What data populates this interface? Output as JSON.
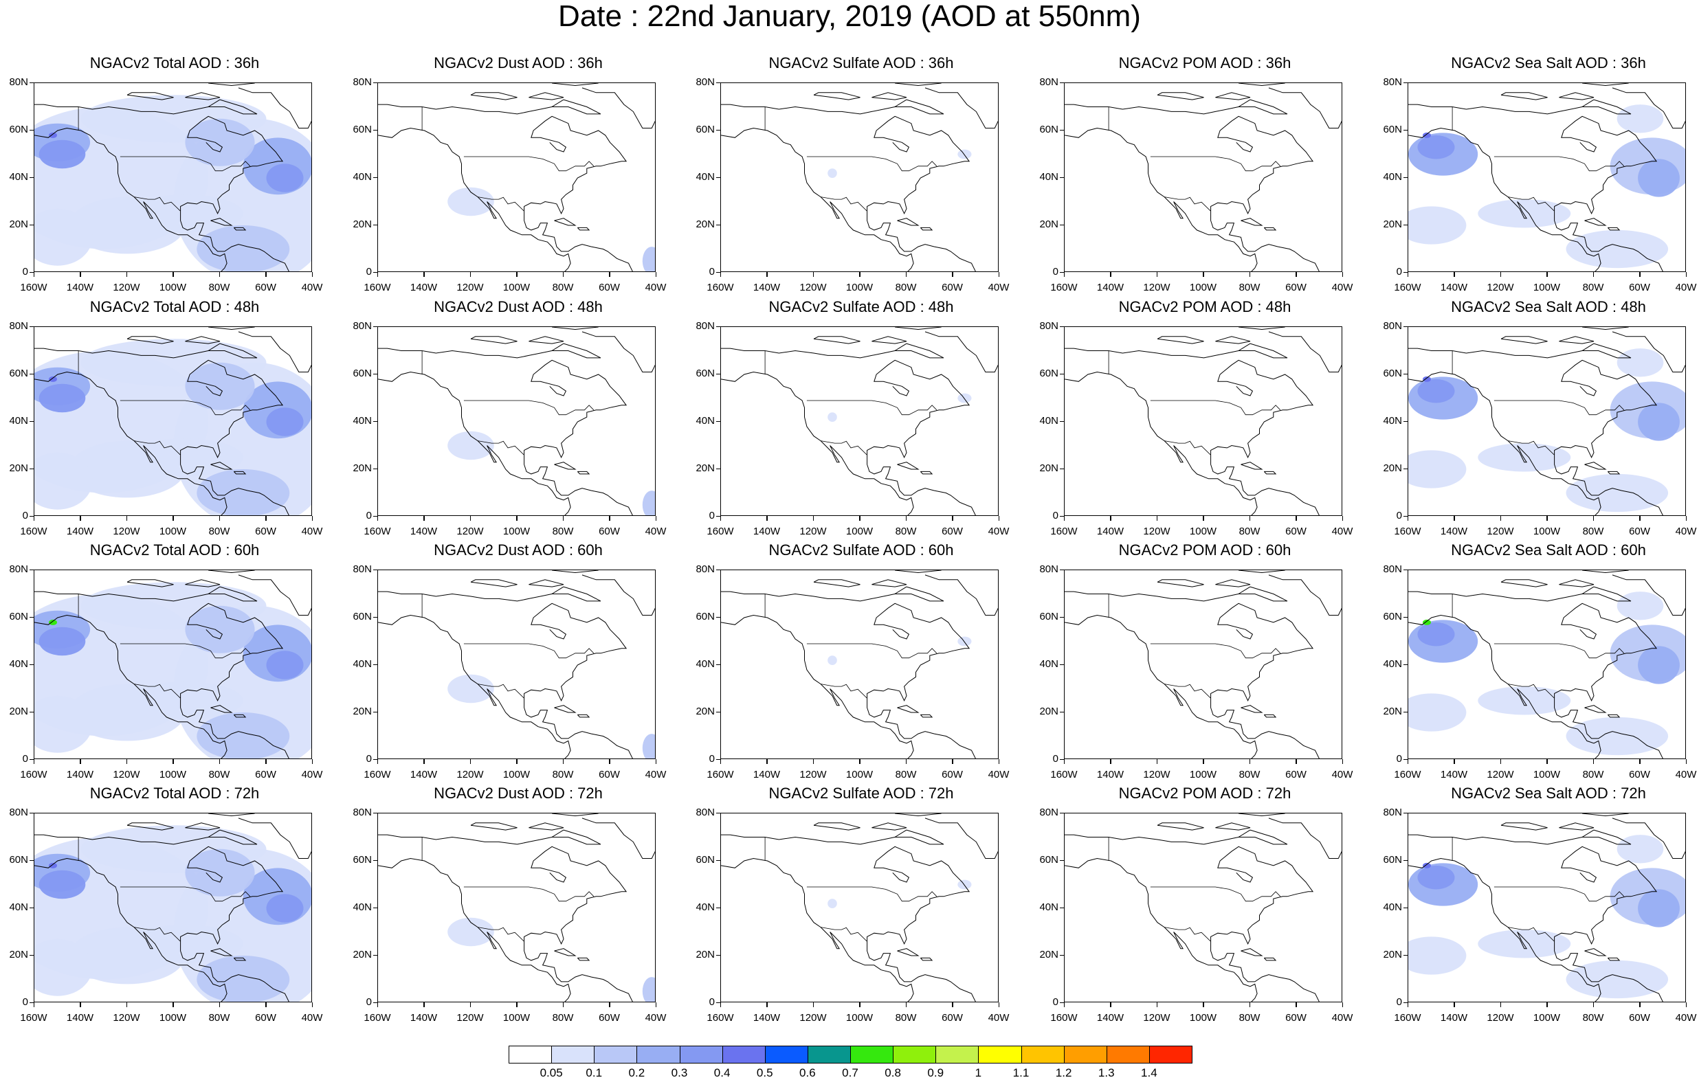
{
  "title": "Date : 22nd January, 2019 (AOD at 550nm)",
  "map_axes": {
    "x_ticks": [
      "160W",
      "140W",
      "120W",
      "100W",
      "80W",
      "60W",
      "40W"
    ],
    "y_ticks": [
      "80N",
      "60N",
      "40N",
      "20N",
      "0"
    ]
  },
  "panels": [
    {
      "title": "NGACv2 Total AOD : 36h",
      "kind": "total"
    },
    {
      "title": "NGACv2 Dust AOD : 36h",
      "kind": "dust"
    },
    {
      "title": "NGACv2 Sulfate AOD : 36h",
      "kind": "sulfate"
    },
    {
      "title": "NGACv2 POM AOD : 36h",
      "kind": "pom"
    },
    {
      "title": "NGACv2 Sea Salt AOD : 36h",
      "kind": "seasalt"
    },
    {
      "title": "NGACv2 Total AOD : 48h",
      "kind": "total"
    },
    {
      "title": "NGACv2 Dust AOD : 48h",
      "kind": "dust"
    },
    {
      "title": "NGACv2 Sulfate AOD : 48h",
      "kind": "sulfate"
    },
    {
      "title": "NGACv2 POM AOD : 48h",
      "kind": "pom"
    },
    {
      "title": "NGACv2 Sea Salt AOD : 48h",
      "kind": "seasalt"
    },
    {
      "title": "NGACv2 Total AOD : 60h",
      "kind": "total"
    },
    {
      "title": "NGACv2 Dust AOD : 60h",
      "kind": "dust"
    },
    {
      "title": "NGACv2 Sulfate AOD : 60h",
      "kind": "sulfate"
    },
    {
      "title": "NGACv2 POM AOD : 60h",
      "kind": "pom"
    },
    {
      "title": "NGACv2 Sea Salt AOD : 60h",
      "kind": "seasalt"
    },
    {
      "title": "NGACv2 Total AOD : 72h",
      "kind": "total"
    },
    {
      "title": "NGACv2 Dust AOD : 72h",
      "kind": "dust"
    },
    {
      "title": "NGACv2 Sulfate AOD : 72h",
      "kind": "sulfate"
    },
    {
      "title": "NGACv2 POM AOD : 72h",
      "kind": "pom"
    },
    {
      "title": "NGACv2 Sea Salt  AOD : 72h",
      "kind": "seasalt"
    }
  ],
  "colorbar": {
    "labels": [
      "0.05",
      "0.1",
      "0.2",
      "0.3",
      "0.4",
      "0.5",
      "0.6",
      "0.7",
      "0.8",
      "0.9",
      "1",
      "1.1",
      "1.2",
      "1.3",
      "1.4"
    ],
    "colors": [
      "#ffffff",
      "#d9e2fb",
      "#b9c8f7",
      "#98aef3",
      "#8499f2",
      "#6a73ef",
      "#0a5bff",
      "#08968e",
      "#35e80e",
      "#8ff00c",
      "#c4f24c",
      "#ffff00",
      "#ffc400",
      "#ff9e00",
      "#ff7a00",
      "#ff2600"
    ]
  }
}
